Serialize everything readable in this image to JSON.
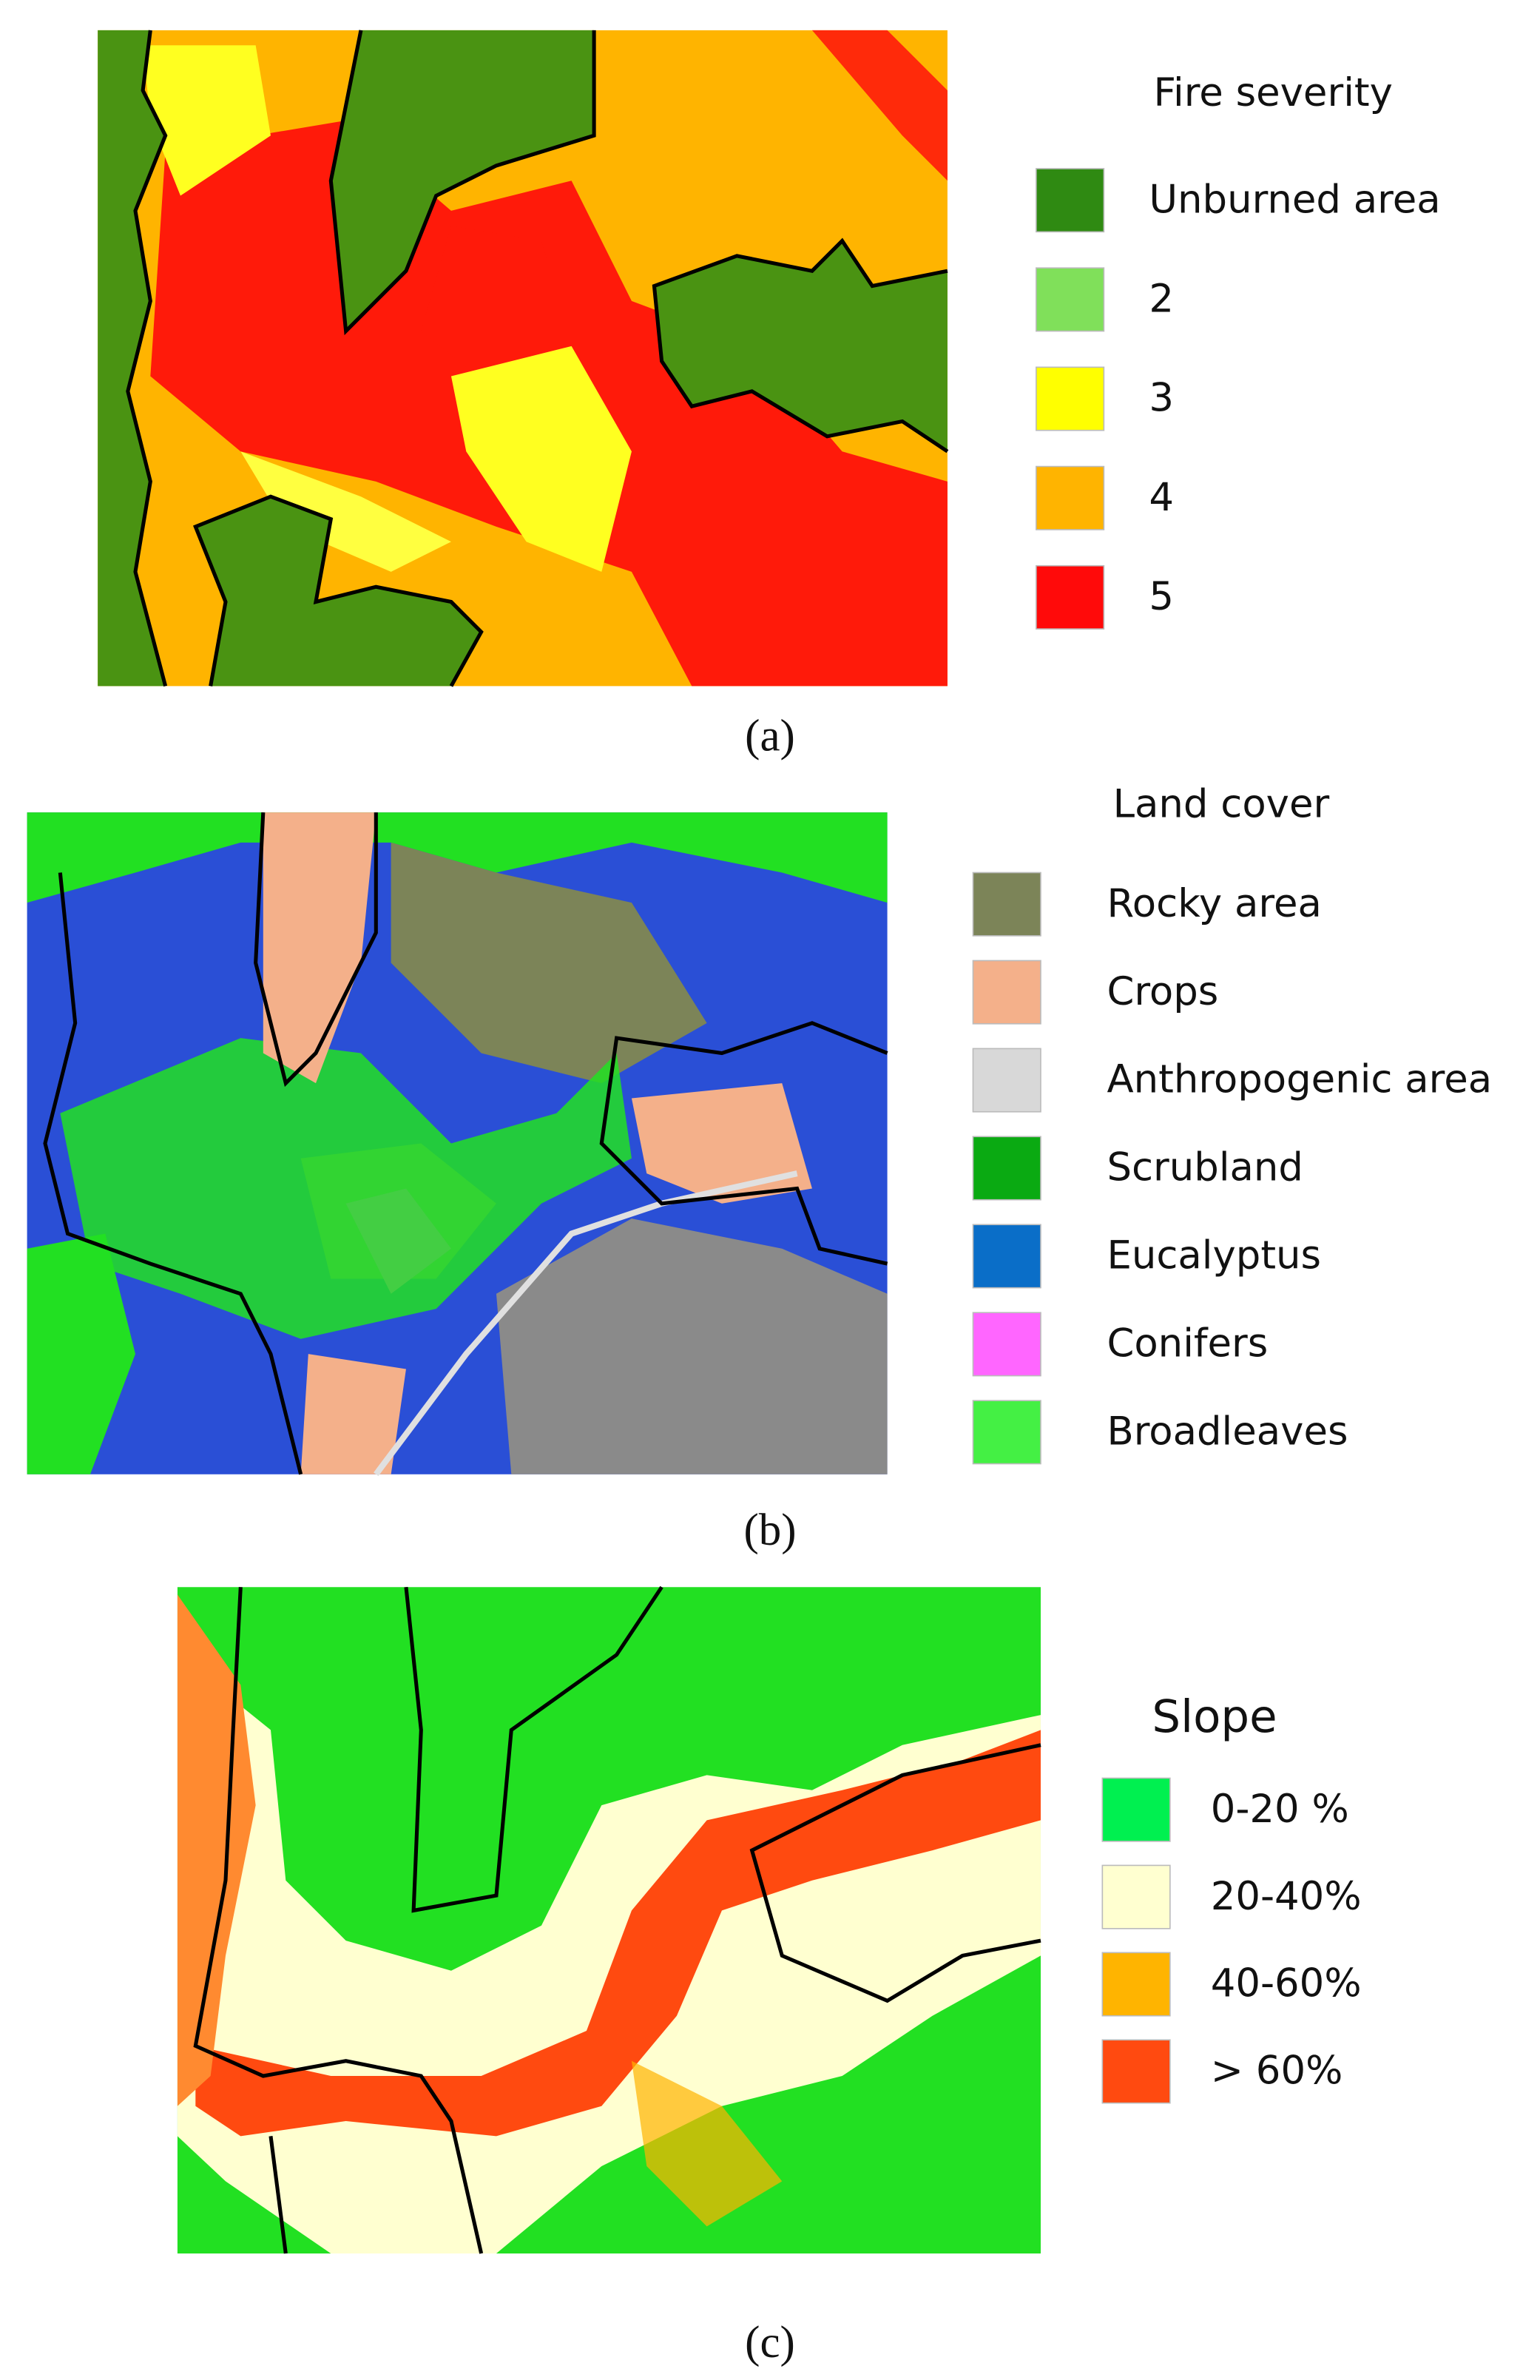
{
  "panels": [
    {
      "caption": "(a)",
      "legend": {
        "title": "Fire severity",
        "items": [
          {
            "label": "Unburned area",
            "color": "#2f8a12"
          },
          {
            "label": "2",
            "color": "#80e05a"
          },
          {
            "label": "3",
            "color": "#ffff00"
          },
          {
            "label": "4",
            "color": "#ffb400"
          },
          {
            "label": "5",
            "color": "#ff0a0a"
          }
        ]
      }
    },
    {
      "caption": "(b)",
      "legend": {
        "title": "Land cover",
        "items": [
          {
            "label": "Rocky area",
            "color": "#7c8458"
          },
          {
            "label": "Crops",
            "color": "#f4b08a"
          },
          {
            "label": "Anthropogenic area",
            "color": "#d8d8d8"
          },
          {
            "label": "Scrubland",
            "color": "#0aaa12"
          },
          {
            "label": "Eucalyptus",
            "color": "#0a6ec8"
          },
          {
            "label": "Conifers",
            "color": "#ff66ff"
          },
          {
            "label": "Broadleaves",
            "color": "#44f044"
          }
        ]
      }
    },
    {
      "caption": "(c)",
      "legend": {
        "title": "Slope",
        "items": [
          {
            "label": "0-20 %",
            "color": "#00f050"
          },
          {
            "label": "20-40%",
            "color": "#ffffd0"
          },
          {
            "label": "40-60%",
            "color": "#ffb400"
          },
          {
            "label": "> 60%",
            "color": "#ff4a10"
          }
        ]
      }
    }
  ]
}
